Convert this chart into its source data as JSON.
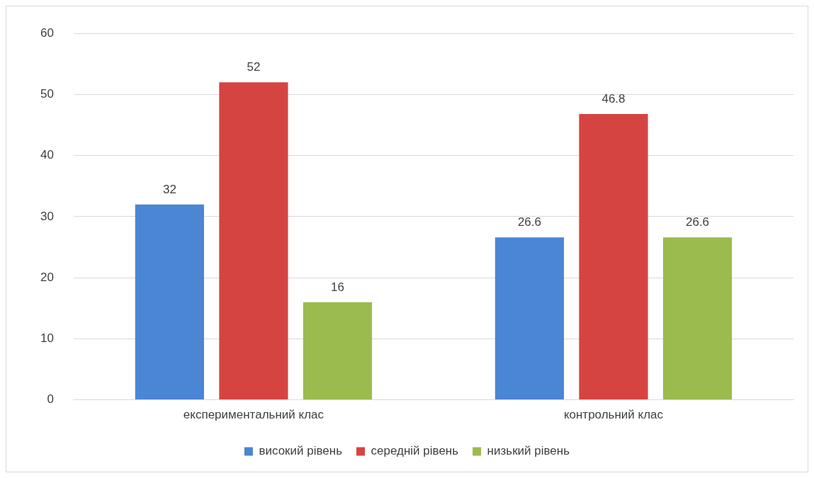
{
  "chart_data": {
    "type": "bar",
    "categories": [
      "експериментальний клас",
      "контрольний клас"
    ],
    "series": [
      {
        "name": "високий рівень",
        "color": "#4a86d4",
        "values": [
          32,
          26.6
        ]
      },
      {
        "name": "середній рівень",
        "color": "#d64441",
        "values": [
          52,
          46.8
        ]
      },
      {
        "name": "низький рівень",
        "color": "#9bbb4f",
        "values": [
          16,
          26.6
        ]
      }
    ],
    "ylim": [
      0,
      60
    ],
    "yticks": [
      0,
      10,
      20,
      30,
      40,
      50,
      60
    ],
    "grid": "y",
    "legend": "bottom",
    "data_labels": true
  }
}
